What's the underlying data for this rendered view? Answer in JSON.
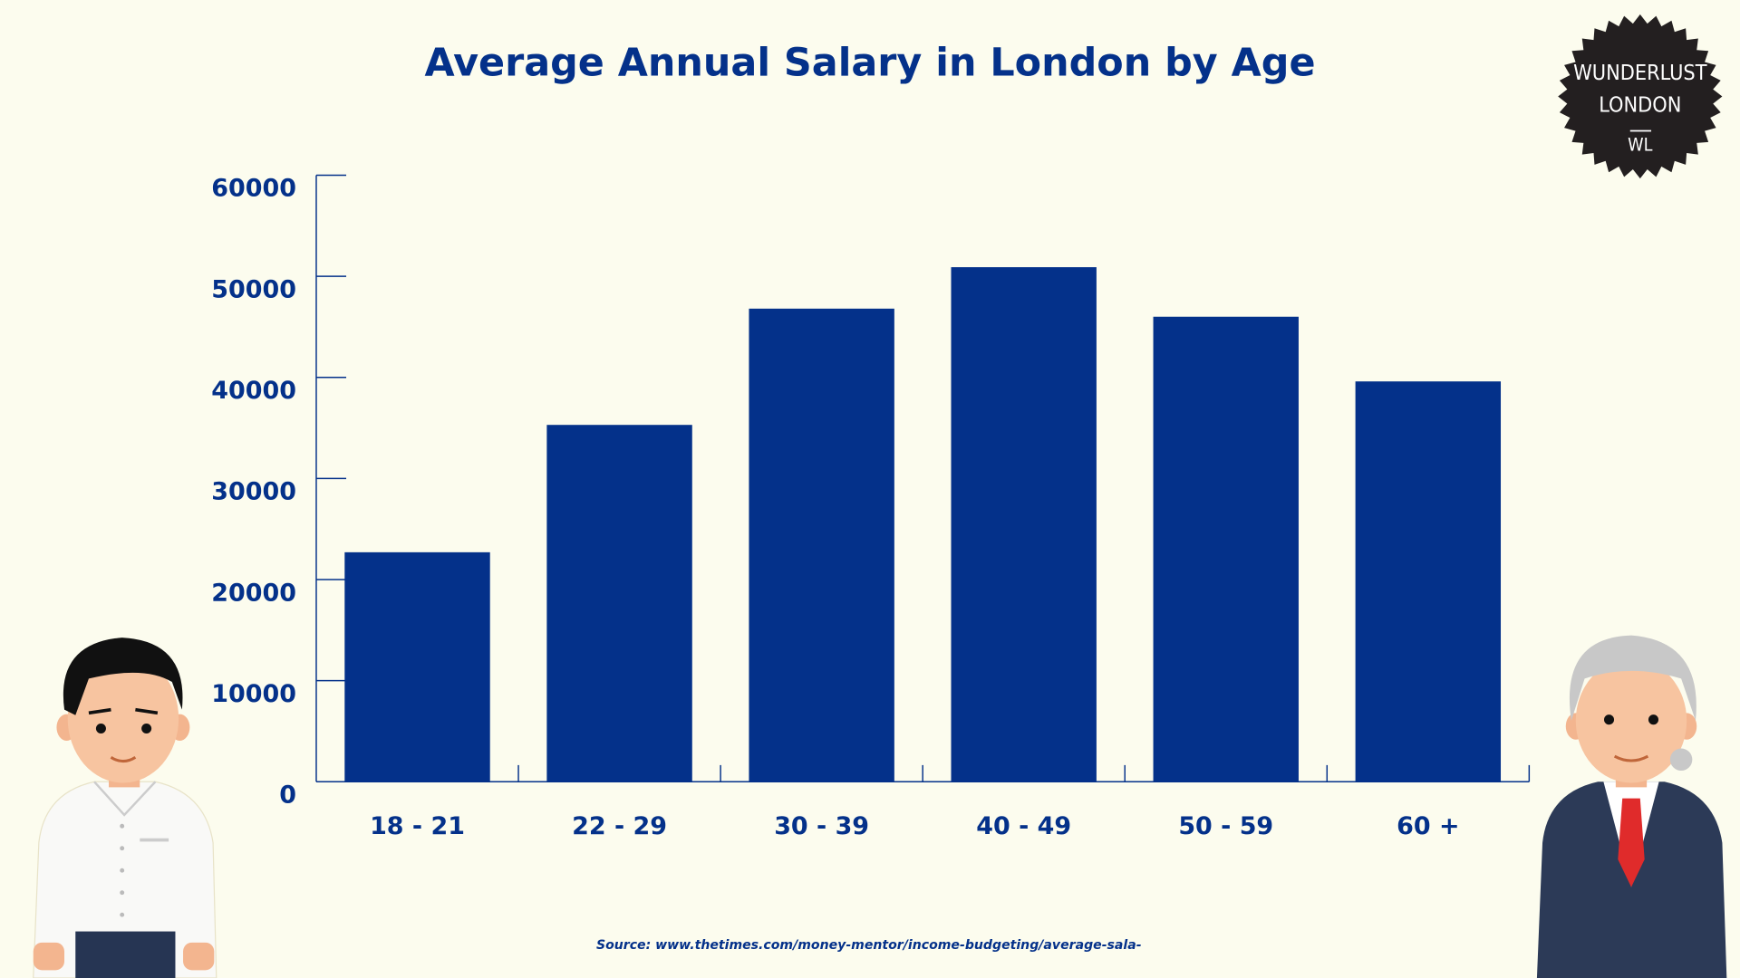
{
  "chart_data": {
    "type": "bar",
    "title": "Average Annual Salary in London by Age",
    "xlabel": "",
    "ylabel": "",
    "categories": [
      "18 - 21",
      "22 - 29",
      "30 - 39",
      "40 - 49",
      "50 - 59",
      "60 +"
    ],
    "values": [
      22700,
      35300,
      46800,
      50900,
      46000,
      39600
    ],
    "ylim": [
      0,
      60000
    ],
    "yticks": [
      "0",
      "10000",
      "20000",
      "30000",
      "40000",
      "50000",
      "60000"
    ],
    "grid": false,
    "bar_color": "#04318a"
  },
  "source": "Source: www.thetimes.com/money-mentor/income-budgeting/average-sala-",
  "logo": {
    "line1": "WUNDERLUST",
    "line2": "LONDON",
    "monogram": "WL"
  },
  "colors": {
    "background": "#fcfcee",
    "accent": "#04318a",
    "logo": "#231f20"
  }
}
